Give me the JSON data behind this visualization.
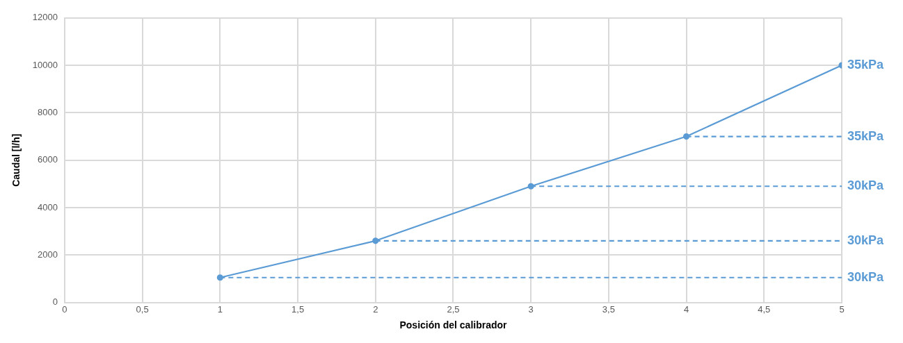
{
  "chart_data": {
    "type": "line",
    "xlabel": "Posición del calibrador",
    "ylabel": "Caudal [l/h]",
    "xlim": [
      0,
      5
    ],
    "xticks": [
      {
        "value": 0,
        "label": "0"
      },
      {
        "value": 0.5,
        "label": "0,5"
      },
      {
        "value": 1,
        "label": "1"
      },
      {
        "value": 1.5,
        "label": "1,5"
      },
      {
        "value": 2,
        "label": "2"
      },
      {
        "value": 2.5,
        "label": "2,5"
      },
      {
        "value": 3,
        "label": "3"
      },
      {
        "value": 3.5,
        "label": "3,5"
      },
      {
        "value": 4,
        "label": "4"
      },
      {
        "value": 4.5,
        "label": "4,5"
      },
      {
        "value": 5,
        "label": "5"
      }
    ],
    "ylim": [
      0,
      12000
    ],
    "yticks": [
      0,
      2000,
      4000,
      6000,
      8000,
      10000,
      12000
    ],
    "grid": true,
    "legend": false,
    "series": [
      {
        "name": "35kPa",
        "color": "#5b9bd5",
        "x": [
          1,
          2,
          3,
          4,
          5
        ],
        "values": [
          1050,
          2600,
          4900,
          7000,
          10000
        ],
        "marker": "circle",
        "line_style": "solid"
      },
      {
        "name": "30kPa",
        "color": "#5b9bd5",
        "x": [
          1,
          5
        ],
        "values": [
          1050,
          1050
        ],
        "marker": "none",
        "line_style": "dashed"
      },
      {
        "name": "30kPa",
        "color": "#5b9bd5",
        "x": [
          2,
          5
        ],
        "values": [
          2600,
          2600
        ],
        "marker": "none",
        "line_style": "dashed"
      },
      {
        "name": "30kPa",
        "color": "#5b9bd5",
        "x": [
          3,
          5
        ],
        "values": [
          4900,
          4900
        ],
        "marker": "none",
        "line_style": "dashed"
      },
      {
        "name": "35kPa",
        "color": "#5b9bd5",
        "x": [
          4,
          5
        ],
        "values": [
          7000,
          7000
        ],
        "marker": "none",
        "line_style": "dashed"
      }
    ]
  }
}
